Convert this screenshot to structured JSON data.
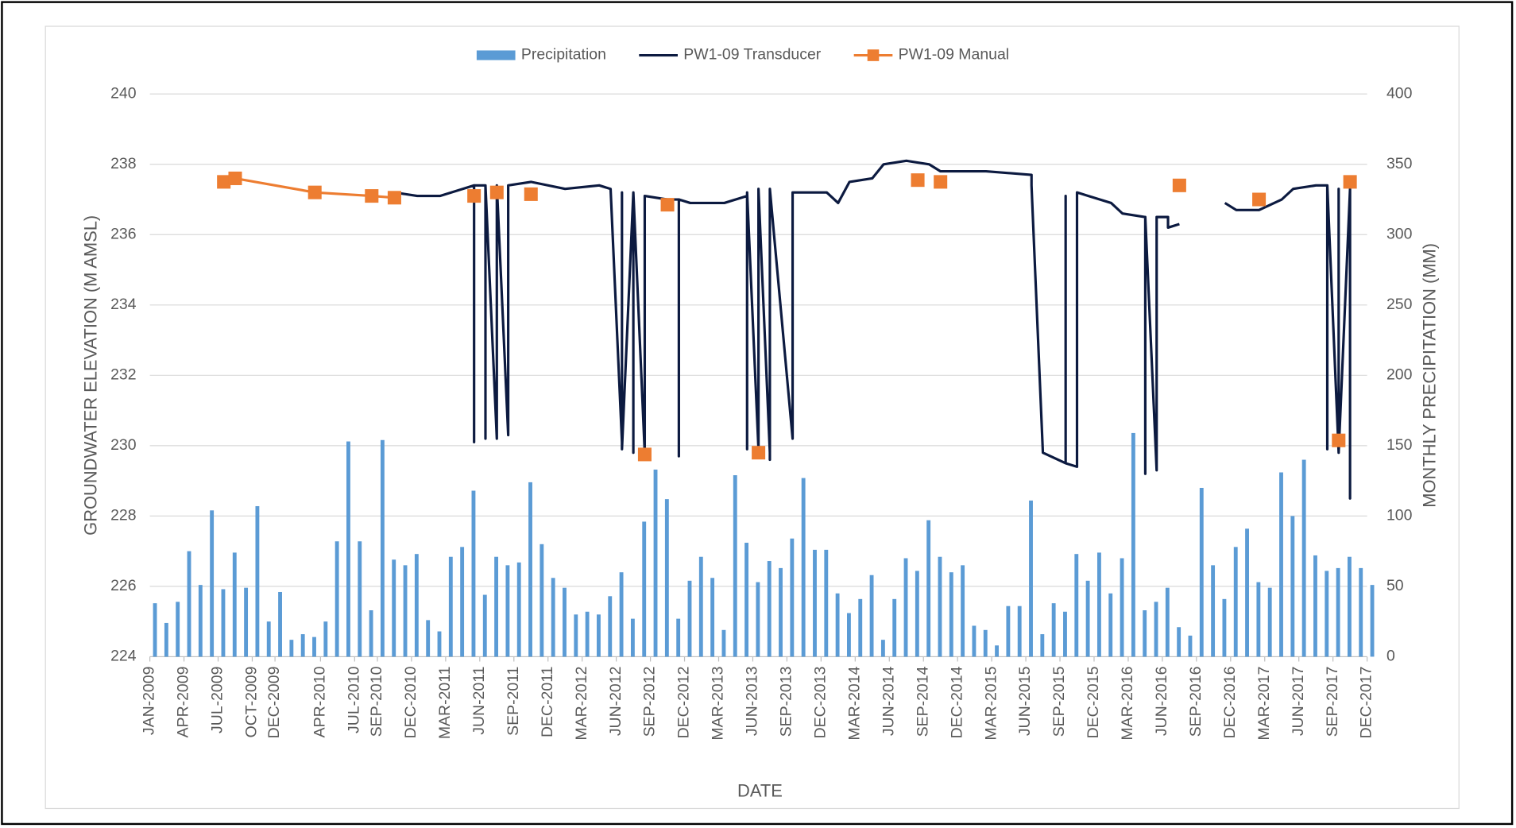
{
  "chart_data": {
    "type": "combo",
    "x_label": "DATE",
    "y_label": "GROUNDWATER ELEVATION (M AMSL)",
    "y2_label": "MONTHLY PRECIPITATION (MM)",
    "xlim": [
      "2009-01",
      "2017-12"
    ],
    "xticks": [
      {
        "value": "2009-01",
        "label": "JAN-2009"
      },
      {
        "value": "2009-04",
        "label": "APR-2009"
      },
      {
        "value": "2009-07",
        "label": "JUL-2009"
      },
      {
        "value": "2009-10",
        "label": "OCT-2009"
      },
      {
        "value": "2009-12",
        "label": "DEC-2009"
      },
      {
        "value": "2010-04",
        "label": "APR-2010"
      },
      {
        "value": "2010-07",
        "label": "JUL-2010"
      },
      {
        "value": "2010-09",
        "label": "SEP-2010"
      },
      {
        "value": "2010-12",
        "label": "DEC-2010"
      },
      {
        "value": "2011-03",
        "label": "MAR-2011"
      },
      {
        "value": "2011-06",
        "label": "JUN-2011"
      },
      {
        "value": "2011-09",
        "label": "SEP-2011"
      },
      {
        "value": "2011-12",
        "label": "DEC-2011"
      },
      {
        "value": "2012-03",
        "label": "MAR-2012"
      },
      {
        "value": "2012-06",
        "label": "JUN-2012"
      },
      {
        "value": "2012-09",
        "label": "SEP-2012"
      },
      {
        "value": "2012-12",
        "label": "DEC-2012"
      },
      {
        "value": "2013-03",
        "label": "MAR-2013"
      },
      {
        "value": "2013-06",
        "label": "JUN-2013"
      },
      {
        "value": "2013-09",
        "label": "SEP-2013"
      },
      {
        "value": "2013-12",
        "label": "DEC-2013"
      },
      {
        "value": "2014-03",
        "label": "MAR-2014"
      },
      {
        "value": "2014-06",
        "label": "JUN-2014"
      },
      {
        "value": "2014-09",
        "label": "SEP-2014"
      },
      {
        "value": "2014-12",
        "label": "DEC-2014"
      },
      {
        "value": "2015-03",
        "label": "MAR-2015"
      },
      {
        "value": "2015-06",
        "label": "JUN-2015"
      },
      {
        "value": "2015-09",
        "label": "SEP-2015"
      },
      {
        "value": "2015-12",
        "label": "DEC-2015"
      },
      {
        "value": "2016-03",
        "label": "MAR-2016"
      },
      {
        "value": "2016-06",
        "label": "JUN-2016"
      },
      {
        "value": "2016-09",
        "label": "SEP-2016"
      },
      {
        "value": "2016-12",
        "label": "DEC-2016"
      },
      {
        "value": "2017-03",
        "label": "MAR-2017"
      },
      {
        "value": "2017-06",
        "label": "JUN-2017"
      },
      {
        "value": "2017-09",
        "label": "SEP-2017"
      },
      {
        "value": "2017-12",
        "label": "DEC-2017"
      }
    ],
    "ylim": [
      224,
      240
    ],
    "yticks": [
      224,
      226,
      228,
      230,
      232,
      234,
      236,
      238,
      240
    ],
    "y2lim": [
      0,
      400
    ],
    "y2ticks": [
      0,
      50,
      100,
      150,
      200,
      250,
      300,
      350,
      400
    ],
    "grid": true,
    "legend": "top",
    "series": [
      {
        "name": "Precipitation",
        "type": "bar",
        "axis": "y2",
        "color": "#5b9bd5",
        "x": [
          "2009-01",
          "2009-02",
          "2009-03",
          "2009-04",
          "2009-05",
          "2009-06",
          "2009-07",
          "2009-08",
          "2009-09",
          "2009-10",
          "2009-11",
          "2009-12",
          "2010-01",
          "2010-02",
          "2010-03",
          "2010-04",
          "2010-05",
          "2010-06",
          "2010-07",
          "2010-08",
          "2010-09",
          "2010-10",
          "2010-11",
          "2010-12",
          "2011-01",
          "2011-02",
          "2011-03",
          "2011-04",
          "2011-05",
          "2011-06",
          "2011-07",
          "2011-08",
          "2011-09",
          "2011-10",
          "2011-11",
          "2011-12",
          "2012-01",
          "2012-02",
          "2012-03",
          "2012-04",
          "2012-05",
          "2012-06",
          "2012-07",
          "2012-08",
          "2012-09",
          "2012-10",
          "2012-11",
          "2012-12",
          "2013-01",
          "2013-02",
          "2013-03",
          "2013-04",
          "2013-05",
          "2013-06",
          "2013-07",
          "2013-08",
          "2013-09",
          "2013-10",
          "2013-11",
          "2013-12",
          "2014-01",
          "2014-02",
          "2014-03",
          "2014-04",
          "2014-05",
          "2014-06",
          "2014-07",
          "2014-08",
          "2014-09",
          "2014-10",
          "2014-11",
          "2014-12",
          "2015-01",
          "2015-02",
          "2015-03",
          "2015-04",
          "2015-05",
          "2015-06",
          "2015-07",
          "2015-08",
          "2015-09",
          "2015-10",
          "2015-11",
          "2015-12",
          "2016-01",
          "2016-02",
          "2016-03",
          "2016-04",
          "2016-05",
          "2016-06",
          "2016-07",
          "2016-08",
          "2016-09",
          "2016-10",
          "2016-11",
          "2016-12",
          "2017-01",
          "2017-02",
          "2017-03",
          "2017-04",
          "2017-05",
          "2017-06",
          "2017-07",
          "2017-08",
          "2017-09",
          "2017-10",
          "2017-11",
          "2017-12"
        ],
        "values": [
          38,
          24,
          39,
          75,
          51,
          104,
          48,
          74,
          49,
          107,
          25,
          46,
          12,
          16,
          14,
          25,
          82,
          153,
          82,
          33,
          154,
          69,
          65,
          73,
          26,
          18,
          71,
          78,
          118,
          44,
          71,
          65,
          67,
          124,
          80,
          56,
          49,
          30,
          32,
          30,
          43,
          60,
          27,
          96,
          133,
          112,
          27,
          54,
          71,
          56,
          19,
          129,
          81,
          53,
          68,
          63,
          84,
          127,
          76,
          76,
          45,
          31,
          41,
          58,
          12,
          41,
          70,
          61,
          97,
          71,
          60,
          65,
          22,
          19,
          8,
          36,
          36,
          111,
          16,
          38,
          32,
          73,
          54,
          74,
          45,
          70,
          159,
          33,
          39,
          49,
          21,
          15,
          120,
          65,
          41,
          78,
          91,
          53,
          49,
          131,
          100,
          140,
          72,
          61,
          63,
          71,
          63,
          51
        ]
      },
      {
        "name": "PW1-09 Transducer",
        "type": "line",
        "axis": "y",
        "color": "#0c1a40",
        "x": [
          "2010-10",
          "2010-12",
          "2011-02",
          "2011-04",
          "2011-05",
          "2011-05",
          "2011-05",
          "2011-06",
          "2011-06",
          "2011-06",
          "2011-07",
          "2011-07",
          "2011-07",
          "2011-07",
          "2011-08",
          "2011-08",
          "2011-10",
          "2012-01",
          "2012-04",
          "2012-05",
          "2012-06",
          "2012-06",
          "2012-06",
          "2012-07",
          "2012-07",
          "2012-07",
          "2012-08",
          "2012-08",
          "2012-10",
          "2012-11",
          "2012-11",
          "2012-11",
          "2012-12",
          "2013-03",
          "2013-05",
          "2013-05",
          "2013-05",
          "2013-06",
          "2013-06",
          "2013-07",
          "2013-07",
          "2013-07",
          "2013-07",
          "2013-09",
          "2013-09",
          "2013-12",
          "2014-01",
          "2014-02",
          "2014-04",
          "2014-05",
          "2014-07",
          "2014-09",
          "2014-10",
          "2015-02",
          "2015-06",
          "2015-06",
          "2015-07",
          "2015-09",
          "2015-09",
          "2015-09",
          "2015-10",
          "2015-10",
          "2015-11",
          "2016-01",
          "2016-02",
          "2016-04",
          "2016-04",
          "2016-04",
          "2016-05",
          "2016-05",
          "2016-06",
          "2016-06",
          "2016-07",
          "2016-10",
          "2016-11",
          "2016-12",
          "2017-02",
          "2017-04",
          "2017-05",
          "2017-07",
          "2017-08",
          "2017-08",
          "2017-08",
          "2017-09",
          "2017-09",
          "2017-09",
          "2017-10",
          "2017-10",
          "2017-10",
          "2017-10"
        ],
        "values": [
          237.2,
          237.1,
          237.1,
          237.3,
          237.4,
          230.1,
          237.4,
          237.4,
          230.2,
          237.4,
          230.2,
          237.4,
          230.2,
          237.4,
          230.3,
          237.4,
          237.5,
          237.3,
          237.4,
          237.3,
          230.1,
          237.2,
          229.9,
          237.2,
          229.8,
          237.2,
          229.8,
          237.1,
          237.0,
          237.0,
          229.7,
          237.0,
          236.9,
          236.9,
          237.1,
          229.9,
          237.2,
          229.9,
          237.3,
          229.8,
          237.3,
          229.6,
          237.3,
          230.2,
          237.2,
          237.2,
          236.9,
          237.5,
          237.6,
          238.0,
          238.1,
          238.0,
          237.8,
          237.8,
          237.7,
          237.4,
          229.8,
          229.5,
          237.1,
          229.5,
          229.4,
          237.2,
          237.1,
          236.9,
          236.6,
          236.5,
          229.2,
          236.5,
          229.3,
          236.5,
          236.5,
          236.2,
          236.3,
          null,
          236.9,
          236.7,
          236.7,
          237.0,
          237.3,
          237.4,
          237.4,
          229.9,
          237.4,
          229.8,
          237.3,
          229.8,
          237.3,
          229.8,
          228.5,
          237.3
        ]
      },
      {
        "name": "PW1-09 Manual",
        "type": "line-marker",
        "axis": "y",
        "color": "#ed7d31",
        "x": [
          "2009-07",
          "2009-08",
          "2010-03",
          "2010-08",
          "2010-10",
          "2011-01",
          "2011-05",
          "2011-06",
          "2011-07",
          "2011-09",
          "2011-10",
          "2012-02",
          "2012-08",
          "2012-09",
          "2012-10",
          "2013-01",
          "2013-06",
          "2014-01",
          "2014-08",
          "2014-09",
          "2014-10",
          "2015-06",
          "2016-07",
          "2016-11",
          "2017-02",
          "2017-05",
          "2017-09",
          "2017-10",
          "2017-10"
        ],
        "values": [
          237.5,
          237.6,
          237.2,
          237.1,
          237.05,
          null,
          237.1,
          null,
          237.2,
          null,
          237.15,
          null,
          229.75,
          null,
          236.85,
          null,
          229.8,
          null,
          237.55,
          null,
          237.5,
          null,
          237.4,
          null,
          237.0,
          null,
          230.15,
          null,
          237.5
        ]
      }
    ]
  }
}
